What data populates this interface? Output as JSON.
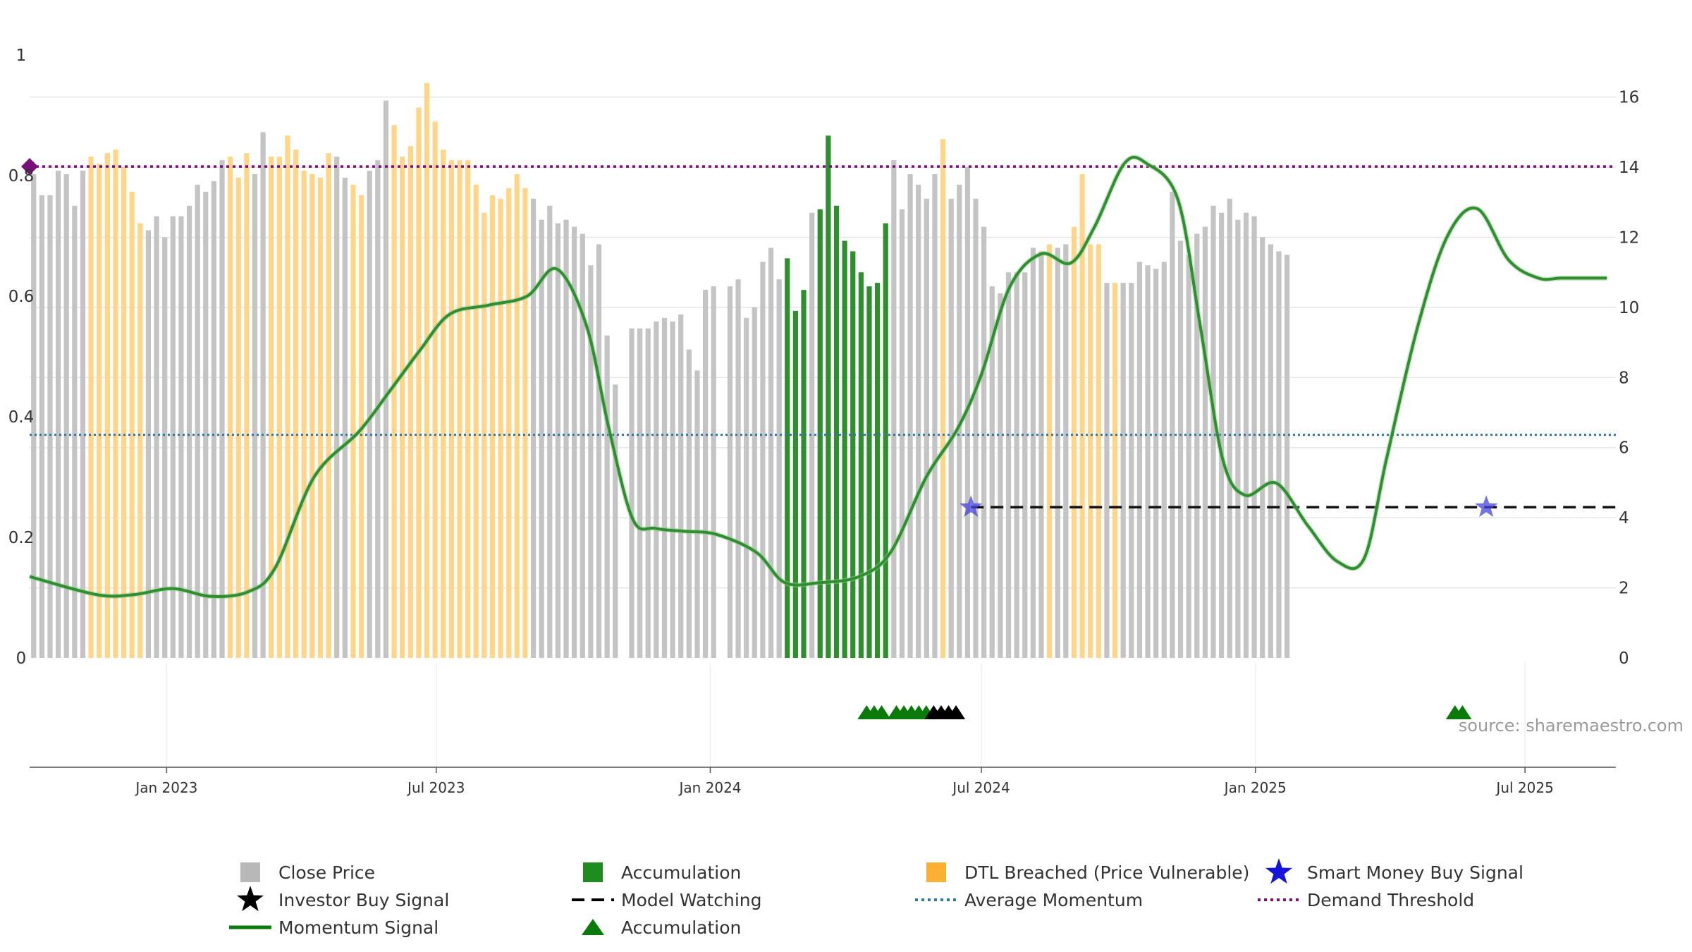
{
  "chart_data": {
    "type": "bar",
    "title": "",
    "xlabel": "",
    "ylabel": "",
    "x_range": [
      "2022-10-01",
      "2025-08-31"
    ],
    "x_ticks": [
      "Jan 2023",
      "Jul 2023",
      "Jan 2024",
      "Jul 2024",
      "Jan 2025",
      "Jul 2025"
    ],
    "y_left": {
      "range": [
        0,
        1
      ],
      "ticks": [
        "0",
        "0.2",
        "0.4",
        "0.6",
        "0.8",
        "1"
      ]
    },
    "y_right": {
      "range": [
        0,
        17.2
      ],
      "ticks": [
        "0",
        "2",
        "4",
        "6",
        "8",
        "10",
        "12",
        "14",
        "16"
      ]
    },
    "grid": true,
    "legend_position": "bottom",
    "source": "source: sharemaestro.com",
    "series": [
      {
        "name": "Close Price",
        "axis": "right",
        "states_key": "bar_state: g = Close Price, o = DTL Breached (Price Vulnerable), a = Accumulation, n = no data",
        "start": "2022-10-01",
        "step_days": 5.5,
        "values": [
          13.8,
          13.2,
          13.2,
          13.9,
          13.8,
          12.9,
          13.9,
          14.3,
          14.1,
          14.4,
          14.5,
          14.0,
          13.3,
          12.4,
          12.2,
          12.6,
          12.0,
          12.6,
          12.6,
          12.9,
          13.5,
          13.3,
          13.6,
          14.2,
          14.3,
          13.7,
          14.4,
          13.8,
          15.0,
          14.3,
          14.3,
          14.9,
          14.5,
          13.9,
          13.8,
          13.7,
          14.4,
          14.3,
          13.7,
          13.5,
          13.2,
          13.9,
          14.2,
          15.9,
          15.2,
          14.3,
          14.6,
          15.7,
          16.4,
          15.3,
          14.5,
          14.2,
          14.2,
          14.2,
          13.5,
          12.7,
          13.2,
          13.1,
          13.4,
          13.8,
          13.4,
          13.1,
          12.5,
          12.9,
          12.4,
          12.5,
          12.3,
          12.1,
          11.2,
          11.8,
          9.2,
          7.8,
          0,
          9.4,
          9.4,
          9.4,
          9.6,
          9.7,
          9.6,
          9.8,
          8.8,
          8.2,
          10.5,
          10.6,
          11.5,
          10.6,
          10.8,
          9.7,
          10.0,
          11.3,
          11.7,
          10.8,
          11.4,
          9.9,
          10.5,
          12.7,
          12.8,
          14.9,
          12.9,
          11.9,
          11.6,
          11.0,
          10.6,
          10.7,
          12.4,
          14.2,
          12.8,
          13.8,
          13.5,
          13.1,
          13.8,
          14.8,
          13.1,
          13.5,
          14.0,
          13.1,
          12.3,
          10.6,
          10.4,
          11.0,
          11.0,
          11.0,
          11.7,
          11.6,
          11.8,
          11.7,
          11.8,
          12.3,
          13.8,
          11.8,
          11.8,
          10.7,
          10.7,
          10.7,
          10.7,
          11.3,
          11.2,
          11.1,
          11.3,
          13.3,
          11.9,
          11.5,
          12.1,
          12.3,
          12.9,
          12.7,
          13.1,
          12.5,
          12.7,
          12.6,
          12.0,
          11.8,
          11.6,
          11.5
        ],
        "bar_state": "gggggggoooooooggggggggggoooggooooooooggoogggooooooooooooooooogggggggggggggggggggggggngggggggaaagaaaaaaaaaggggggoggggggggggggoggoooogoggggggggggggggggggggggaaggggggggggggggg"
      },
      {
        "name": "Momentum Signal",
        "axis": "left",
        "dates": [
          "2022-10-01",
          "2022-11-15",
          "2022-12-10",
          "2023-01-05",
          "2023-01-31",
          "2023-02-25",
          "2023-03-15",
          "2023-04-10",
          "2023-05-10",
          "2023-05-30",
          "2023-06-20",
          "2023-07-10",
          "2023-08-05",
          "2023-08-31",
          "2023-09-20",
          "2023-10-10",
          "2023-10-25",
          "2023-11-10",
          "2023-11-25",
          "2023-12-15",
          "2024-01-05",
          "2024-02-01",
          "2024-02-20",
          "2024-03-15",
          "2024-04-10",
          "2024-05-01",
          "2024-05-25",
          "2024-06-15",
          "2024-07-01",
          "2024-07-20",
          "2024-08-10",
          "2024-08-30",
          "2024-09-15",
          "2024-10-05",
          "2024-10-20",
          "2024-11-10",
          "2024-11-25",
          "2024-12-10",
          "2024-12-25",
          "2025-01-15",
          "2025-02-05",
          "2025-02-25",
          "2025-03-15",
          "2025-03-30",
          "2025-04-20",
          "2025-05-10",
          "2025-05-30",
          "2025-06-20",
          "2025-07-10",
          "2025-07-25",
          "2025-08-10",
          "2025-08-25"
        ],
        "values": [
          0.135,
          0.105,
          0.105,
          0.115,
          0.102,
          0.11,
          0.15,
          0.3,
          0.375,
          0.44,
          0.51,
          0.57,
          0.585,
          0.6,
          0.645,
          0.55,
          0.38,
          0.23,
          0.215,
          0.21,
          0.205,
          0.175,
          0.125,
          0.125,
          0.135,
          0.175,
          0.3,
          0.38,
          0.47,
          0.615,
          0.67,
          0.655,
          0.715,
          0.82,
          0.82,
          0.76,
          0.55,
          0.33,
          0.27,
          0.29,
          0.22,
          0.16,
          0.165,
          0.33,
          0.55,
          0.7,
          0.745,
          0.66,
          0.63,
          0.63,
          0.63,
          0.63
        ]
      },
      {
        "name": "Accumulation",
        "marker": "triangle",
        "dates": [
          "2024-04-15",
          "2024-04-20",
          "2024-04-25",
          "2024-05-05",
          "2024-05-10",
          "2024-05-15",
          "2024-05-20",
          "2024-05-25",
          "2025-05-15",
          "2025-05-20"
        ],
        "values": [
          -0.09,
          -0.09,
          -0.09,
          -0.09,
          -0.09,
          -0.09,
          -0.09,
          -0.09,
          -0.09,
          -0.09
        ]
      },
      {
        "name": "Investor Buy Signal",
        "marker": "triangle",
        "dates": [
          "2024-05-30",
          "2024-06-04",
          "2024-06-09",
          "2024-06-14"
        ],
        "values": [
          -0.09,
          -0.09,
          -0.09,
          -0.09
        ]
      },
      {
        "name": "Smart Money Buy Signal",
        "marker": "star",
        "dates": [
          "2024-06-24",
          "2025-06-05"
        ],
        "values": [
          0.25,
          0.25
        ]
      },
      {
        "name": "Model Watching",
        "line": "dashed",
        "x_range": [
          "2024-06-24",
          "2025-08-31"
        ],
        "value": 0.25
      },
      {
        "name": "Average Momentum",
        "line": "dotted",
        "value": 0.37
      },
      {
        "name": "Demand Threshold",
        "line": "dotted",
        "value": 0.815
      },
      {
        "name": "DTL Breached (Price Vulnerable)"
      }
    ],
    "legend": [
      {
        "label": "Close Price",
        "symbol": "square",
        "color": "#b8b8b8"
      },
      {
        "label": "Accumulation",
        "symbol": "square",
        "color": "#1f8c1f"
      },
      {
        "label": "DTL Breached (Price Vulnerable)",
        "symbol": "square",
        "color": "#fbb034"
      },
      {
        "label": "Smart Money Buy Signal",
        "symbol": "star",
        "color": "#1515d9"
      },
      {
        "label": "Investor Buy Signal",
        "symbol": "star",
        "color": "#000000"
      },
      {
        "label": "Model Watching",
        "symbol": "dash",
        "color": "#000000"
      },
      {
        "label": "Average Momentum",
        "symbol": "dots",
        "color": "#2f77a6"
      },
      {
        "label": "Demand Threshold",
        "symbol": "dots",
        "color": "#7a0f7a"
      },
      {
        "label": "Momentum Signal",
        "symbol": "line",
        "color": "#0a7a0a"
      },
      {
        "label": "Accumulation",
        "symbol": "triangle",
        "color": "#0a7a0a"
      }
    ],
    "colors": {
      "close_bar": "#c4c4c4",
      "dtl_bar": "#ffd589",
      "accumulation_bar": "#2f8f2f",
      "momentum": "#2f8f2f",
      "momentum_strong": "#0a7a0a",
      "average_momentum": "#2f77a6",
      "demand_threshold": "#7a0f7a",
      "model_watching": "#111111",
      "smart_money": "#4444dd",
      "investor_buy": "#000000",
      "accumulation_marker": "#0a7a0a",
      "grid": "#e6e6e6"
    }
  }
}
